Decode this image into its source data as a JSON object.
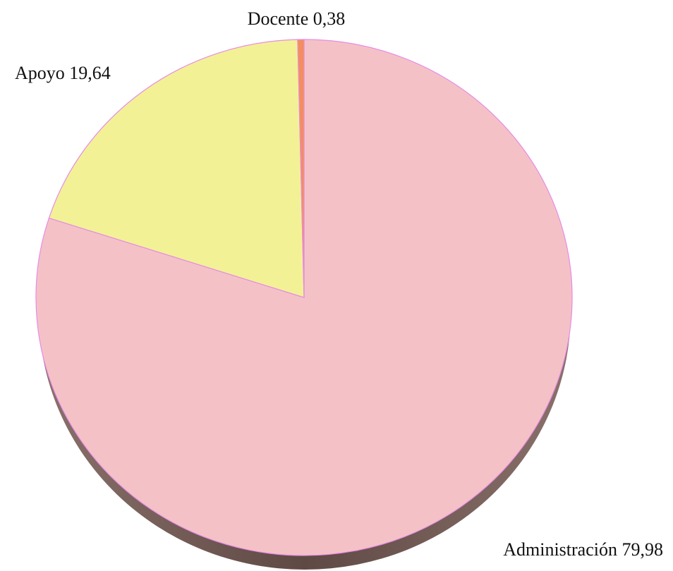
{
  "chart_data": {
    "type": "pie",
    "style": "3d",
    "title": "",
    "slices": [
      {
        "label": "Administración",
        "value": 79.98,
        "value_text": "79,98",
        "color": "#F4C2C6",
        "label_text": "Administración  79,98"
      },
      {
        "label": "Apoyo",
        "value": 19.64,
        "value_text": "19,64",
        "color": "#F3F195",
        "label_text": "Apoyo  19,64"
      },
      {
        "label": "Docente",
        "value": 0.38,
        "value_text": "0,38",
        "color": "#F48E5A",
        "label_text": "Docente 0,38"
      }
    ],
    "start_angle_deg": 0,
    "direction": "clockwise",
    "edge_color": "#E78BE6",
    "shadow_color": "#6E5550",
    "legend": "none"
  }
}
